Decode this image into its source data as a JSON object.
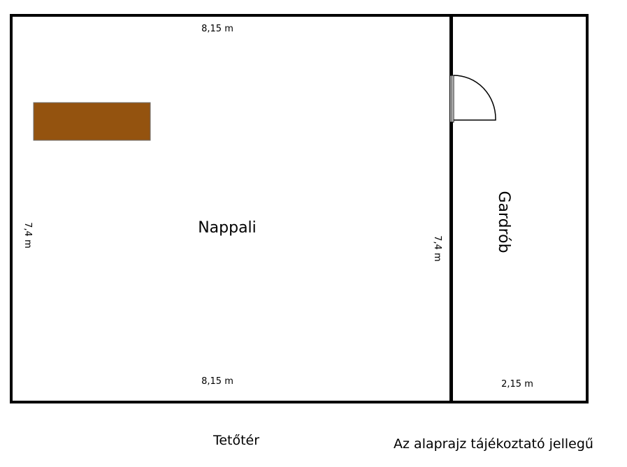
{
  "plan": {
    "rooms": {
      "living_room": "Nappali",
      "wardrobe": "Gardrób"
    },
    "dimensions": {
      "top_width": "8,15 m",
      "bottom_width": "8,15 m",
      "left_height": "7,4 m",
      "inner_wall_height": "7,4 m",
      "wardrobe_width": "2,15 m"
    },
    "floor_label": "Tetőtér",
    "disclaimer": "Az alaprajz tájékoztató jellegű",
    "colors": {
      "wall": "#000000",
      "furniture": "#94530f",
      "background": "#ffffff"
    }
  }
}
